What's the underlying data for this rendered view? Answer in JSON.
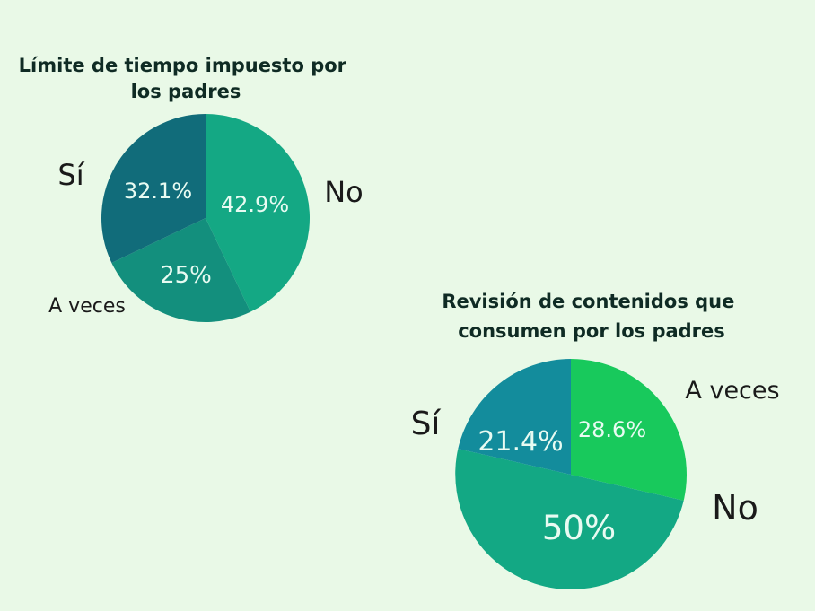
{
  "chart_data": [
    {
      "type": "pie",
      "title_lines": [
        "Límite de tiempo impuesto por",
        "los padres"
      ],
      "slices": [
        {
          "label": "No",
          "value": 42.9,
          "value_label": "42.9%",
          "color": "#14a884"
        },
        {
          "label": "A veces",
          "value": 25,
          "value_label": "25%",
          "color": "#138f7d"
        },
        {
          "label": "Sí",
          "value": 32.1,
          "value_label": "32.1%",
          "color": "#116c7a"
        }
      ]
    },
    {
      "type": "pie",
      "title_lines": [
        "Revisión de contenidos que",
        "consumen por los padres"
      ],
      "slices": [
        {
          "label": "A veces",
          "value": 28.6,
          "value_label": "28.6%",
          "color": "#18c95c"
        },
        {
          "label": "No",
          "value": 50,
          "value_label": "50%",
          "color": "#13a884"
        },
        {
          "label": "Sí",
          "value": 21.4,
          "value_label": "21.4%",
          "color": "#138c9c"
        }
      ]
    }
  ],
  "colors": {
    "background": "#e9f9e7",
    "title_text": "#0f2b24",
    "category_text": "#1a1a1a",
    "slice_text": "#e8fbf2"
  }
}
